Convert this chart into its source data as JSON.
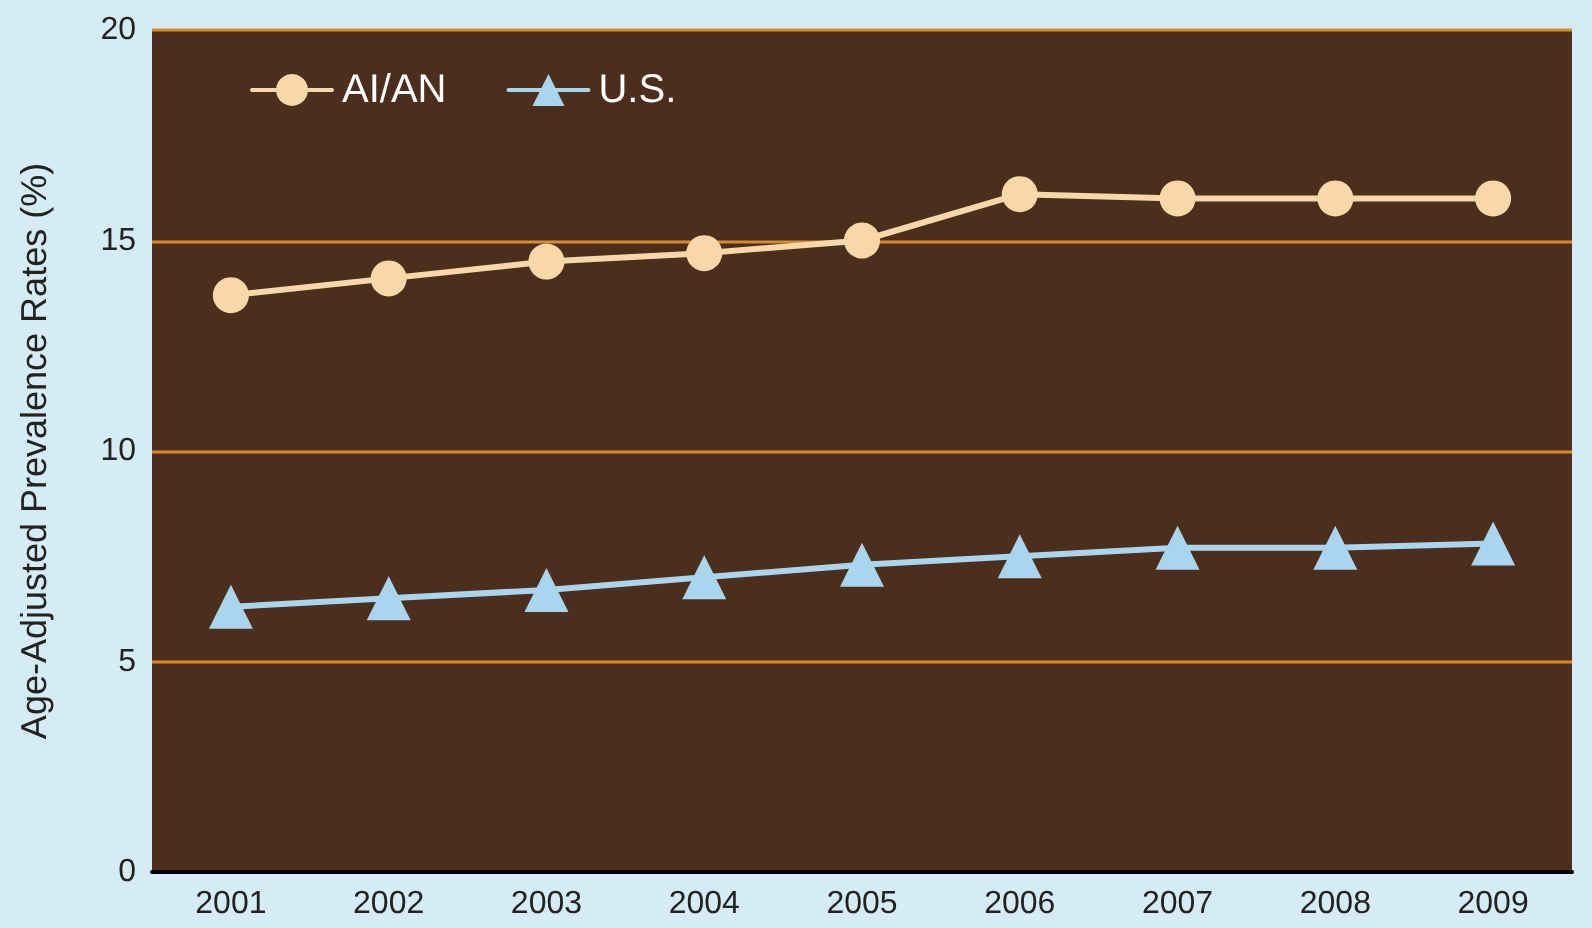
{
  "chart_data": {
    "type": "line",
    "ylabel": "Age-Adjusted Prevalence Rates (%)",
    "categories": [
      "2001",
      "2002",
      "2003",
      "2004",
      "2005",
      "2006",
      "2007",
      "2008",
      "2009"
    ],
    "series": [
      {
        "name": "AI/AN",
        "color": "#f8d8a8",
        "marker": "circle",
        "values": [
          13.7,
          14.1,
          14.5,
          14.7,
          15.0,
          16.1,
          16.0,
          16.0,
          16.0
        ]
      },
      {
        "name": "U.S.",
        "color": "#a9d5ef",
        "marker": "triangle",
        "values": [
          6.3,
          6.5,
          6.7,
          7.0,
          7.3,
          7.5,
          7.7,
          7.7,
          7.8
        ]
      }
    ],
    "ylim": [
      0,
      20
    ],
    "yticks": [
      0,
      5,
      10,
      15,
      20
    ],
    "grid": "y",
    "legend": "top left",
    "line_style": "solid"
  }
}
